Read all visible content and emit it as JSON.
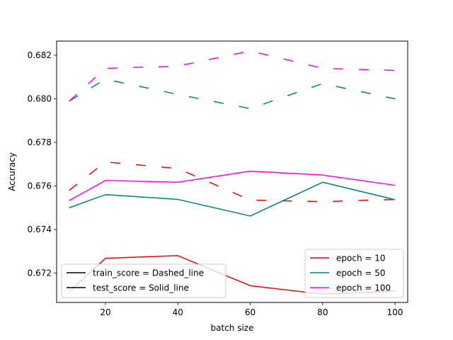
{
  "chart_data": {
    "type": "line",
    "xlabel": "batch size",
    "ylabel": "Accuracy",
    "xlim": [
      6.5,
      103.5
    ],
    "ylim": [
      0.67065,
      0.68265
    ],
    "x_ticks": [
      20,
      40,
      60,
      80,
      100
    ],
    "x_tick_labels": [
      "20",
      "40",
      "60",
      "80",
      "100"
    ],
    "y_ticks": [
      0.672,
      0.674,
      0.676,
      0.678,
      0.68,
      0.682
    ],
    "y_tick_labels": [
      "0.672",
      "0.674",
      "0.676",
      "0.678",
      "0.680",
      "0.682"
    ],
    "grid": false,
    "x": [
      10,
      20,
      40,
      60,
      80,
      100
    ],
    "series": [
      {
        "name": "epoch = 10",
        "kind": "train",
        "color": "#ff0000",
        "style": "dashed",
        "values": [
          0.6758,
          0.6771,
          0.6768,
          0.67535,
          0.67528,
          0.67538
        ]
      },
      {
        "name": "epoch = 50",
        "kind": "train",
        "color": "#008080",
        "style": "dashed",
        "values": [
          0.6799,
          0.6809,
          0.6802,
          0.67955,
          0.6807,
          0.68
        ]
      },
      {
        "name": "epoch = 100",
        "kind": "train",
        "color": "#ff00ff",
        "style": "dashed",
        "values": [
          0.6799,
          0.6814,
          0.6815,
          0.6822,
          0.6814,
          0.6813
        ]
      },
      {
        "name": "epoch = 10",
        "kind": "test",
        "color": "#ff0000",
        "style": "solid",
        "values": [
          0.67115,
          0.67268,
          0.6728,
          0.67142,
          0.67103,
          0.67117
        ]
      },
      {
        "name": "epoch = 50",
        "kind": "test",
        "color": "#008080",
        "style": "solid",
        "values": [
          0.675,
          0.6756,
          0.67538,
          0.67462,
          0.67617,
          0.67537
        ]
      },
      {
        "name": "epoch = 100",
        "kind": "test",
        "color": "#ff00ff",
        "style": "solid",
        "values": [
          0.67533,
          0.67625,
          0.67617,
          0.67668,
          0.6765,
          0.67603
        ]
      }
    ],
    "legend_right": {
      "placement": "lower right",
      "entries": [
        {
          "label": "epoch = 10",
          "color": "#ff0000"
        },
        {
          "label": "epoch = 50",
          "color": "#008080"
        },
        {
          "label": "epoch = 100",
          "color": "#ff00ff"
        }
      ]
    },
    "legend_left": {
      "placement": "lower left",
      "entries": [
        {
          "label": "train_score = Dashed_line",
          "color": "#000000"
        },
        {
          "label": "test_score = Solid_line",
          "color": "#000000"
        }
      ]
    }
  }
}
